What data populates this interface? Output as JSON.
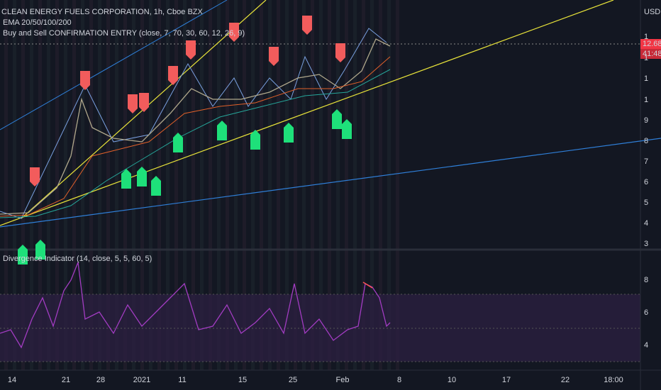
{
  "header": {
    "title": "CLEAN ENERGY FUELS CORPORATION, 1h, Cboe BZX",
    "indicators": [
      "EMA 20/50/100/200",
      "Buy and Sell CONFIRMATION ENTRY (close, 7, 70, 30, 60, 12, 26, 9)"
    ]
  },
  "currency": "USD",
  "price_tags": [
    "12.68",
    "41:48"
  ],
  "price_axis": [
    "1",
    "1",
    "1",
    "1",
    "9",
    "8",
    "7",
    "6",
    "5",
    "4",
    "3"
  ],
  "lower_panel": {
    "title": "Divergence Indicator (14, close, 5, 5, 60, 5)",
    "axis": [
      "8",
      "6",
      "4"
    ]
  },
  "time_axis": [
    "14",
    "21",
    "28",
    "2021",
    "11",
    "15",
    "25",
    "Feb",
    "8",
    "10",
    "17",
    "22",
    "18:00"
  ]
}
